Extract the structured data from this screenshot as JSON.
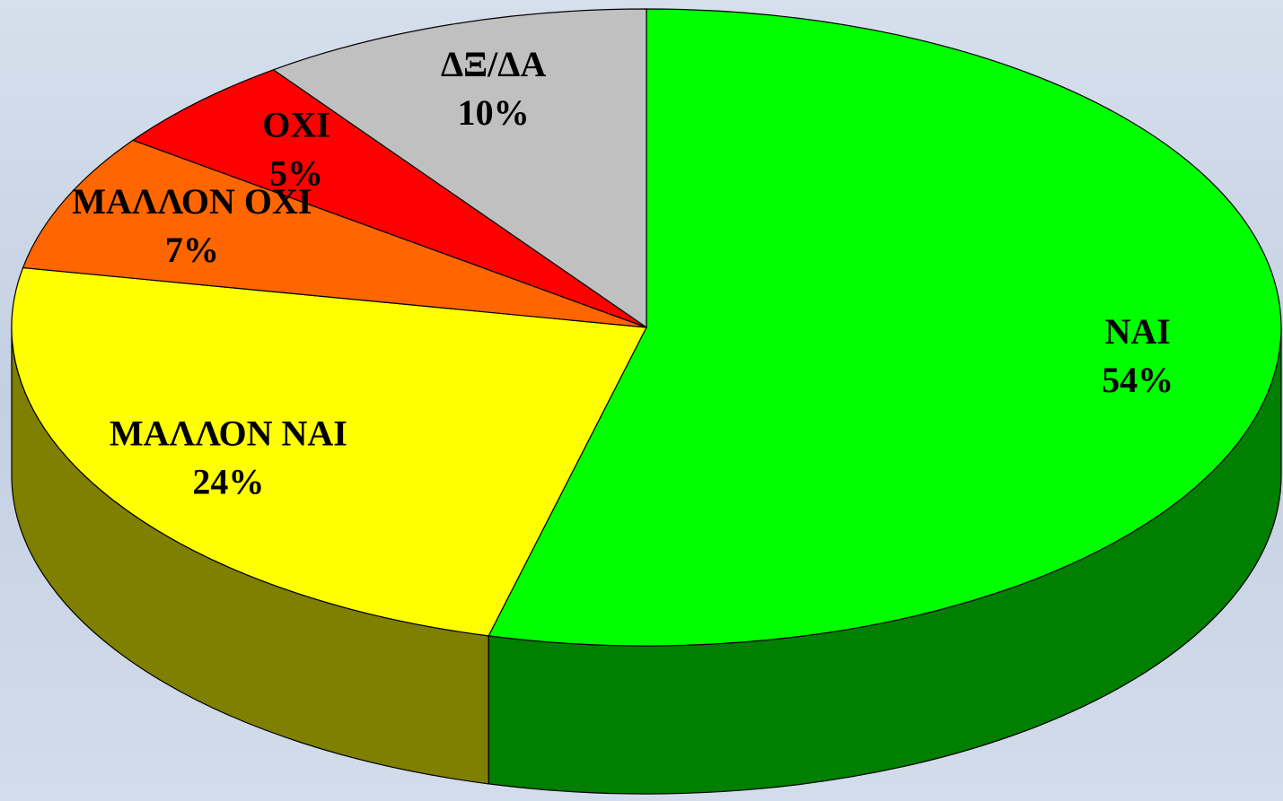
{
  "chart_data": {
    "type": "pie",
    "categories": [
      "ΝΑΙ",
      "ΜΑΛΛΟΝ ΝΑΙ",
      "ΜΑΛΛΟΝ ΟΧΙ",
      "ΟΧΙ",
      "ΔΞ/ΔΑ"
    ],
    "values": [
      54,
      24,
      7,
      5,
      10
    ],
    "value_labels": [
      "54%",
      "24%",
      "7%",
      "5%",
      "10%"
    ],
    "colors": [
      "#00ff00",
      "#ffff00",
      "#ff6600",
      "#ff0000",
      "#c0c0c0"
    ]
  }
}
